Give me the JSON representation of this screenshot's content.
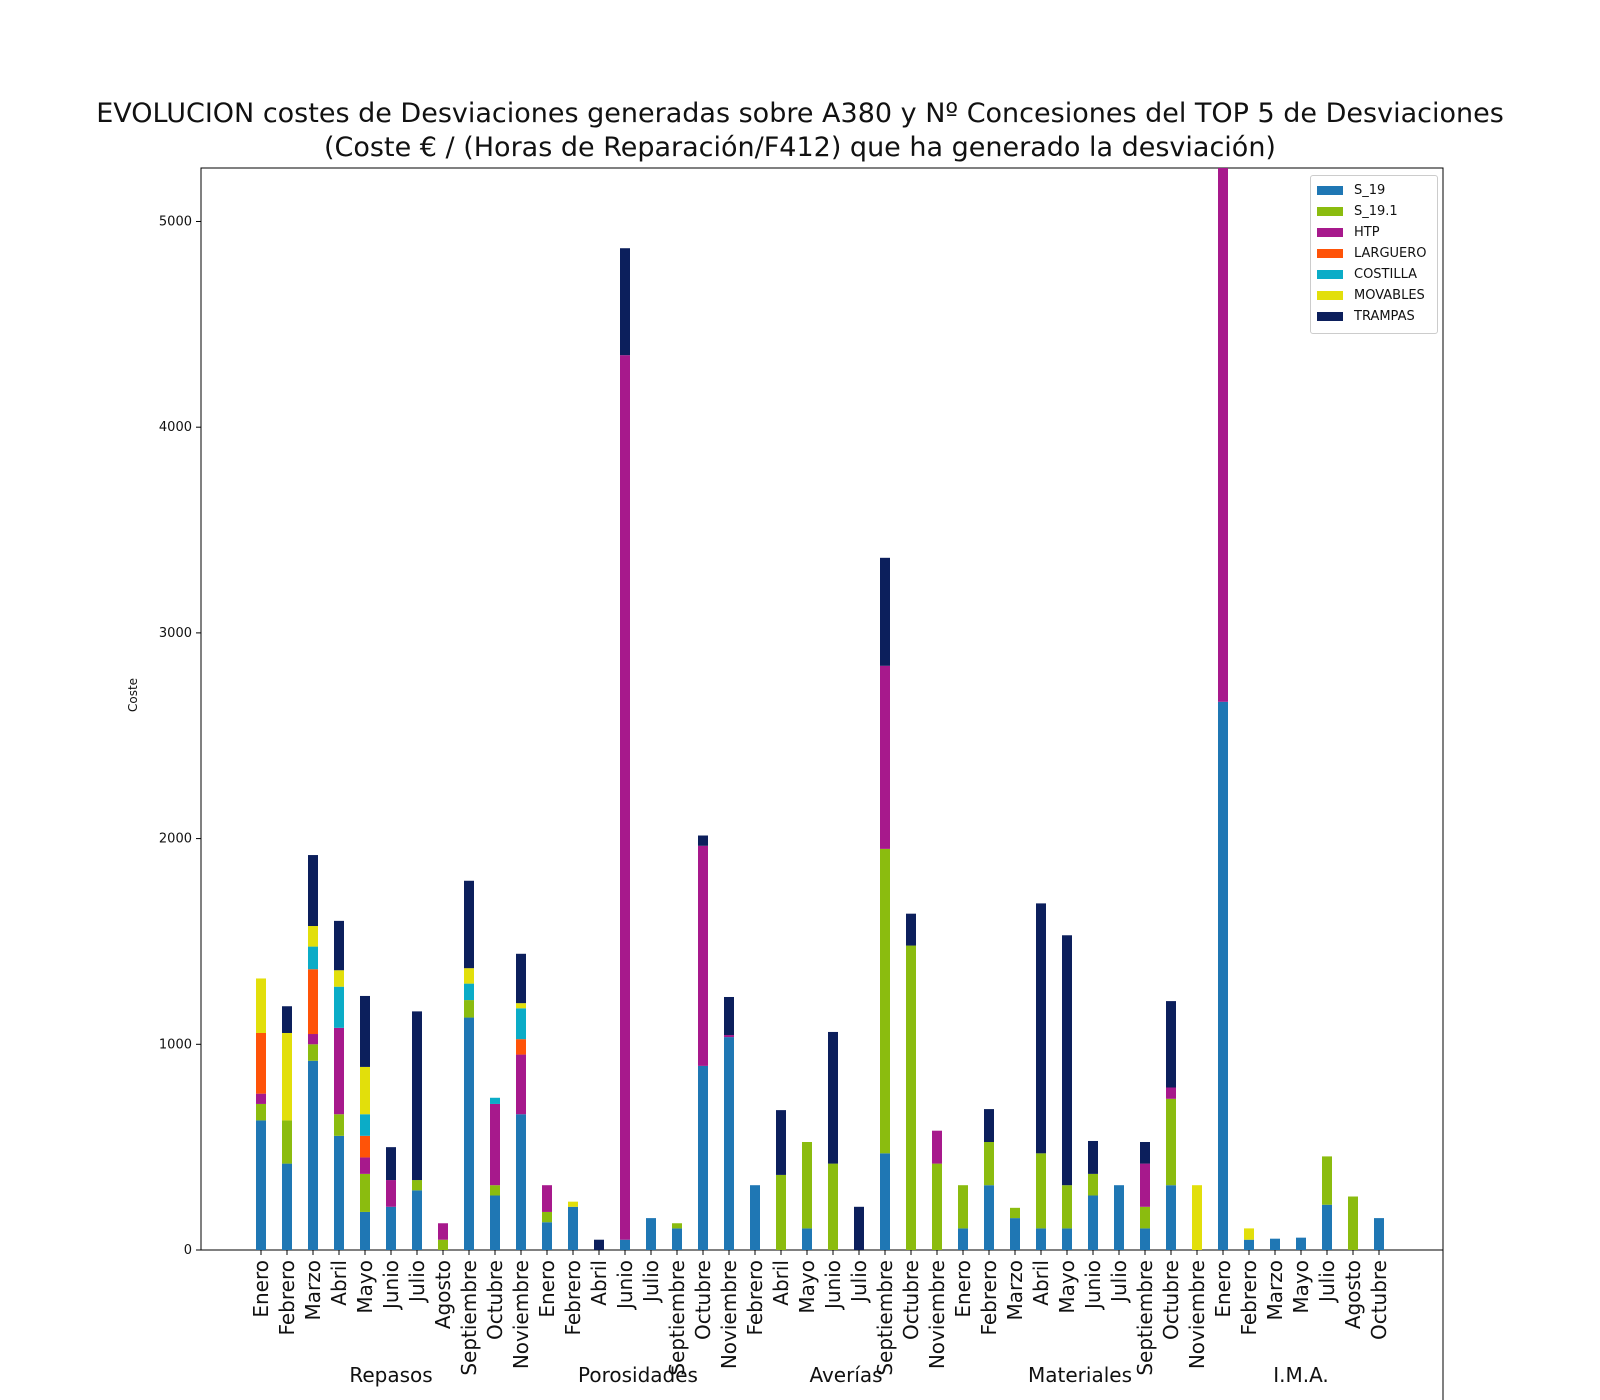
{
  "title": [
    "EVOLUCION costes de Desviaciones  generadas sobre A380 y Nº Concesiones del TOP 5 de Desviaciones",
    "(Coste € / (Horas de Reparación/F412) que ha generado la desviación)"
  ],
  "chart_data": {
    "type": "bar",
    "stacked": true,
    "ylabel": "Coste",
    "ylim": [
      0,
      5260
    ],
    "yticks": [
      0,
      1000,
      2000,
      3000,
      4000,
      5000
    ],
    "legend_position": "upper right",
    "series_names": [
      "S_19",
      "S_19.1",
      "HTP",
      "LARGUERO",
      "COSTILLA",
      "MOVABLES",
      "TRAMPAS"
    ],
    "colors": {
      "S_19": "#1f77b4",
      "S_19.1": "#8bbc0f",
      "HTP": "#a7198c",
      "LARGUERO": "#ff5308",
      "COSTILLA": "#0bacc7",
      "MOVABLES": "#e2df0b",
      "TRAMPAS": "#0c1f5c"
    },
    "groups": [
      {
        "name": "Repasos",
        "months": [
          "Enero",
          "Febrero",
          "Marzo",
          "Abril",
          "Mayo",
          "Junio",
          "Julio",
          "Agosto",
          "Septiembre",
          "Octubre",
          "Noviembre"
        ]
      },
      {
        "name": "Porosidades",
        "months": [
          "Enero",
          "Febrero",
          "Abril",
          "Junio",
          "Julio",
          "Septiembre",
          "Octubre",
          "Noviembre"
        ]
      },
      {
        "name": "Averías",
        "months": [
          "Febrero",
          "Abril",
          "Mayo",
          "Junio",
          "Julio",
          "Septiembre",
          "Octubre",
          "Noviembre"
        ]
      },
      {
        "name": "Materiales",
        "months": [
          "Enero",
          "Febrero",
          "Marzo",
          "Abril",
          "Mayo",
          "Junio",
          "Julio",
          "Septiembre",
          "Octubre",
          "Noviembre"
        ]
      },
      {
        "name": "I.M.A.",
        "months": [
          "Enero",
          "Febrero",
          "Marzo",
          "Mayo",
          "Julio",
          "Agosto",
          "Octubre"
        ]
      }
    ],
    "categories": [
      "Enero",
      "Febrero",
      "Marzo",
      "Abril",
      "Mayo",
      "Junio",
      "Julio",
      "Agosto",
      "Septiembre",
      "Octubre",
      "Noviembre",
      "Enero",
      "Febrero",
      "Abril",
      "Junio",
      "Julio",
      "Septiembre",
      "Octubre",
      "Noviembre",
      "Febrero",
      "Abril",
      "Mayo",
      "Junio",
      "Julio",
      "Septiembre",
      "Octubre",
      "Noviembre",
      "Enero",
      "Febrero",
      "Marzo",
      "Abril",
      "Mayo",
      "Junio",
      "Julio",
      "Septiembre",
      "Octubre",
      "Noviembre",
      "Enero",
      "Febrero",
      "Marzo",
      "Mayo",
      "Julio",
      "Agosto",
      "Octubre"
    ],
    "series": [
      {
        "name": "S_19",
        "values": [
          630,
          420,
          920,
          555,
          185,
          210,
          290,
          0,
          1130,
          265,
          660,
          135,
          210,
          0,
          50,
          155,
          105,
          895,
          1035,
          315,
          0,
          105,
          0,
          0,
          470,
          0,
          0,
          105,
          315,
          155,
          105,
          105,
          265,
          315,
          105,
          315,
          0,
          2665,
          50,
          55,
          60,
          220,
          0,
          155
        ]
      },
      {
        "name": "S_19.1",
        "values": [
          80,
          210,
          80,
          105,
          185,
          0,
          50,
          50,
          85,
          50,
          0,
          50,
          0,
          0,
          0,
          0,
          25,
          0,
          0,
          0,
          365,
          420,
          420,
          0,
          1480,
          1480,
          420,
          210,
          210,
          50,
          365,
          210,
          105,
          0,
          105,
          420,
          0,
          0,
          0,
          0,
          0,
          235,
          260,
          0
        ]
      },
      {
        "name": "HTP",
        "values": [
          50,
          0,
          50,
          420,
          80,
          130,
          0,
          80,
          0,
          395,
          290,
          130,
          0,
          0,
          4300,
          0,
          0,
          1070,
          10,
          0,
          0,
          0,
          0,
          0,
          890,
          0,
          160,
          0,
          0,
          0,
          0,
          0,
          0,
          0,
          210,
          55,
          0,
          2605,
          0,
          0,
          0,
          0,
          0,
          0
        ]
      },
      {
        "name": "LARGUERO",
        "values": [
          295,
          0,
          315,
          0,
          105,
          0,
          0,
          0,
          0,
          0,
          75,
          0,
          0,
          0,
          0,
          0,
          0,
          0,
          0,
          0,
          0,
          0,
          0,
          0,
          0,
          0,
          0,
          0,
          0,
          0,
          0,
          0,
          0,
          0,
          0,
          0,
          0,
          0,
          0,
          0,
          0,
          0,
          0,
          0
        ]
      },
      {
        "name": "COSTILLA",
        "values": [
          0,
          0,
          110,
          200,
          105,
          0,
          0,
          0,
          80,
          30,
          150,
          0,
          0,
          0,
          0,
          0,
          0,
          0,
          0,
          0,
          0,
          0,
          0,
          0,
          0,
          0,
          0,
          0,
          0,
          0,
          0,
          0,
          0,
          0,
          0,
          0,
          0,
          0,
          0,
          0,
          0,
          0,
          0,
          0
        ]
      },
      {
        "name": "MOVABLES",
        "values": [
          265,
          425,
          100,
          80,
          230,
          0,
          0,
          0,
          75,
          0,
          25,
          0,
          25,
          0,
          0,
          0,
          0,
          0,
          0,
          0,
          0,
          0,
          0,
          0,
          0,
          0,
          0,
          0,
          0,
          0,
          0,
          0,
          0,
          0,
          0,
          0,
          315,
          0,
          55,
          0,
          0,
          0,
          0,
          0
        ]
      },
      {
        "name": "TRAMPAS",
        "values": [
          0,
          130,
          345,
          240,
          345,
          160,
          820,
          0,
          425,
          0,
          240,
          0,
          0,
          50,
          520,
          0,
          0,
          50,
          185,
          0,
          315,
          0,
          640,
          210,
          525,
          155,
          0,
          0,
          160,
          0,
          1215,
          1215,
          160,
          0,
          105,
          420,
          0,
          0,
          0,
          0,
          0,
          0,
          0,
          0
        ]
      }
    ]
  }
}
